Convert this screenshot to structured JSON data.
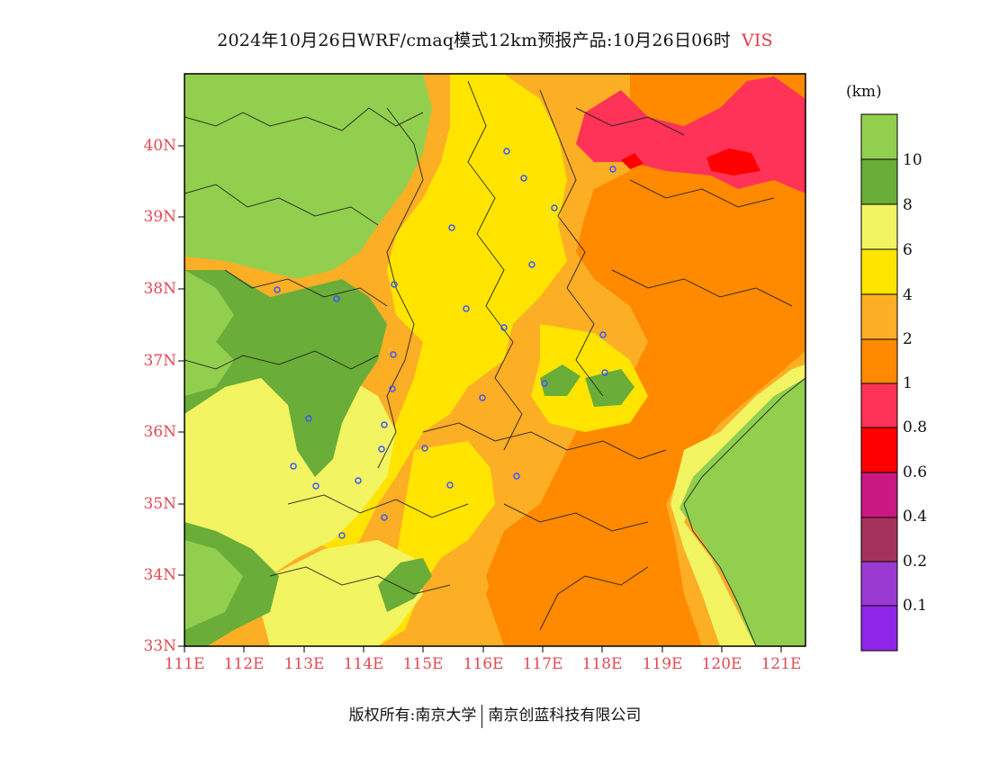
{
  "title": {
    "text": "2024年10月26日WRF/cmaq模式12km预报产品:10月26日06时",
    "variable": "VIS"
  },
  "axes": {
    "lat_labels": [
      "40N",
      "39N",
      "38N",
      "37N",
      "36N",
      "35N",
      "34N",
      "33N"
    ],
    "lat_values": [
      40,
      39,
      38,
      37,
      36,
      35,
      34,
      33
    ],
    "lon_labels": [
      "111E",
      "112E",
      "113E",
      "114E",
      "115E",
      "116E",
      "117E",
      "118E",
      "119E",
      "120E",
      "121E"
    ],
    "lon_values": [
      111,
      112,
      113,
      114,
      115,
      116,
      117,
      118,
      119,
      120,
      121
    ],
    "lon_range": [
      111,
      121.4
    ],
    "lat_range": [
      33,
      41
    ]
  },
  "legend": {
    "unit": "(km)",
    "labels": [
      "10",
      "8",
      "6",
      "4",
      "2",
      "1",
      "0.8",
      "0.6",
      "0.4",
      "0.2",
      "0.1"
    ],
    "colors": [
      "#93cf4f",
      "#6aad38",
      "#f2f462",
      "#ffe400",
      "#fcae25",
      "#ff8a00",
      "#fe3357",
      "#fe0000",
      "#c91980",
      "#a5325a",
      "#9a3ad0",
      "#8f26e8"
    ]
  },
  "colors": {
    "label_red": "#e24a54",
    "vis_gt10": "#93cf4f",
    "vis_8_10": "#6aad38",
    "vis_6_8": "#f2f462",
    "vis_4_6": "#ffe400",
    "vis_2_4": "#fcae25",
    "vis_1_2": "#ff8a00",
    "vis_08_1": "#fe3357",
    "vis_06_08": "#fe0000",
    "city_marker": "#3b55ff"
  },
  "footer": {
    "copyright": "版权所有:南京大学",
    "company": "南京创蓝科技有限公司"
  }
}
